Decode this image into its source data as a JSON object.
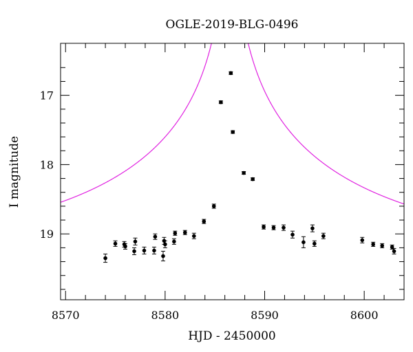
{
  "chart_data": {
    "type": "scatter",
    "title": "OGLE-2019-BLG-0496",
    "xlabel": "HJD - 2450000",
    "ylabel": "I magnitude",
    "xlim": [
      8569.5,
      8604.0
    ],
    "ylim": [
      19.95,
      16.25
    ],
    "y_inverted": true,
    "grid": false,
    "x_ticks_major": [
      8570,
      8580,
      8590,
      8600
    ],
    "x_tick_labels": [
      "8570",
      "8580",
      "8590",
      "8600"
    ],
    "y_ticks_major": [
      17,
      18,
      19
    ],
    "y_tick_labels": [
      "17",
      "18",
      "19"
    ],
    "series": [
      {
        "kind": "points_with_errorbars",
        "color": "#000000",
        "x": [
          8574.0,
          8575.0,
          8575.9,
          8576.0,
          8576.9,
          8577.0,
          8577.9,
          8578.9,
          8579.0,
          8579.8,
          8579.9,
          8580.0,
          8580.9,
          8581.0,
          8582.0,
          8582.9,
          8583.9,
          8584.9,
          8585.6,
          8586.6,
          8586.8,
          8587.9,
          8588.8,
          8589.9,
          8590.9,
          8591.9,
          8592.8,
          8593.9,
          8594.8,
          8595.0,
          8595.9,
          8599.8,
          8600.9,
          8601.8,
          8602.8,
          8603.0
        ],
        "y": [
          19.35,
          19.14,
          19.15,
          19.18,
          19.25,
          19.11,
          19.24,
          19.24,
          19.04,
          19.32,
          19.1,
          19.15,
          19.11,
          18.99,
          18.98,
          19.03,
          18.82,
          18.6,
          17.1,
          16.68,
          17.53,
          18.12,
          18.21,
          18.9,
          18.91,
          18.91,
          19.01,
          19.12,
          18.92,
          19.14,
          19.03,
          19.09,
          19.15,
          19.17,
          19.19,
          19.25
        ],
        "err": [
          0.06,
          0.04,
          0.04,
          0.04,
          0.05,
          0.05,
          0.05,
          0.05,
          0.04,
          0.07,
          0.05,
          0.05,
          0.04,
          0.03,
          0.03,
          0.04,
          0.03,
          0.03,
          0.02,
          0.02,
          0.02,
          0.02,
          0.02,
          0.03,
          0.03,
          0.04,
          0.05,
          0.08,
          0.05,
          0.04,
          0.04,
          0.04,
          0.03,
          0.03,
          0.03,
          0.04
        ]
      },
      {
        "kind": "model_curve",
        "color": "#e020e0",
        "model": {
          "baseline": 19.28,
          "t0": 8586.5,
          "u0": 0.0008,
          "tE": 30.0
        }
      }
    ]
  }
}
